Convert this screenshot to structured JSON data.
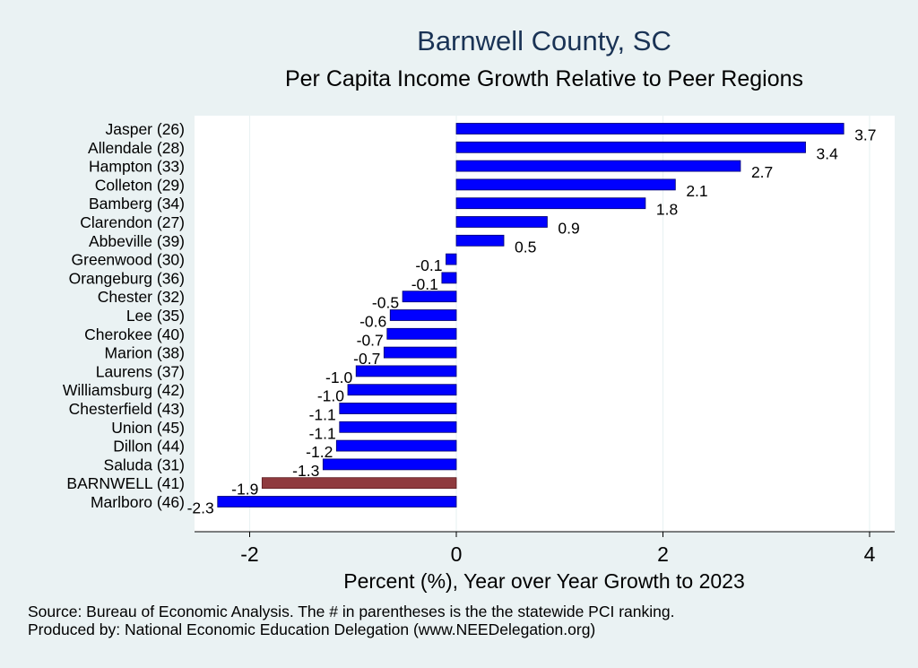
{
  "header": {
    "title": "Barnwell County, SC",
    "subtitle": "Per Capita Income Growth Relative to Peer Regions"
  },
  "footer": {
    "source": "Source: Bureau of Economic Analysis. The # in parentheses is the the statewide PCI ranking.",
    "produced_by": "Produced by: National Economic Education Delegation (www.NEEDelegation.org)"
  },
  "colors": {
    "background": "#eaf2f3",
    "plot_background": "#ffffff",
    "bar": "#0000ff",
    "highlight_bar": "#8f3a3e"
  },
  "chart_data": {
    "type": "bar",
    "orientation": "horizontal",
    "title": "Barnwell County, SC",
    "subtitle": "Per Capita Income Growth Relative to Peer Regions",
    "xlabel": "Percent (%), Year over Year Growth to 2023",
    "ylabel": "",
    "xlim": [
      -2.3,
      4.2
    ],
    "xticks": [
      -2,
      0,
      2,
      4
    ],
    "xtick_labels": [
      "-2",
      "0",
      "2",
      "4"
    ],
    "grid": "vertical",
    "highlight": "BARNWELL (41)",
    "categories": [
      "Jasper (26)",
      "Allendale (28)",
      "Hampton (33)",
      "Colleton (29)",
      "Bamberg (34)",
      "Clarendon (27)",
      "Abbeville (39)",
      "Greenwood (30)",
      "Orangeburg (36)",
      "Chester (32)",
      "Lee (35)",
      "Cherokee (40)",
      "Marion (38)",
      "Laurens (37)",
      "Williamsburg (42)",
      "Chesterfield (43)",
      "Union (45)",
      "Dillon (44)",
      "Saluda (31)",
      "BARNWELL (41)",
      "Marlboro (46)"
    ],
    "values": [
      3.75,
      3.38,
      2.75,
      2.12,
      1.83,
      0.88,
      0.46,
      -0.1,
      -0.14,
      -0.52,
      -0.64,
      -0.67,
      -0.7,
      -0.97,
      -1.05,
      -1.13,
      -1.13,
      -1.16,
      -1.29,
      -1.88,
      -2.31
    ],
    "data_labels": [
      "3.7",
      "3.4",
      "2.7",
      "2.1",
      "1.8",
      "0.9",
      "0.5",
      "-0.1",
      "-0.1",
      "-0.5",
      "-0.6",
      "-0.7",
      "-0.7",
      "-1.0",
      "-1.0",
      "-1.1",
      "-1.1",
      "-1.2",
      "-1.3",
      "-1.9",
      "-2.3"
    ]
  }
}
